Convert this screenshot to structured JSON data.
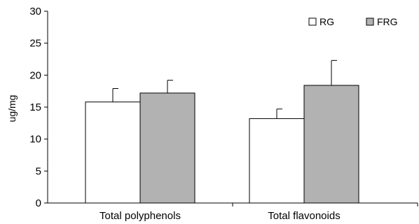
{
  "chart_data": {
    "type": "bar",
    "title": "",
    "xlabel": "",
    "ylabel": "ug/mg",
    "ylim": [
      0,
      30
    ],
    "yticks": [
      0,
      5,
      10,
      15,
      20,
      25,
      30
    ],
    "categories": [
      "Total polyphenols",
      "Total flavonoids"
    ],
    "series": [
      {
        "name": "RG",
        "color": "#ffffff",
        "values": [
          15.8,
          13.2
        ],
        "errors": [
          2.1,
          1.5
        ]
      },
      {
        "name": "FRG",
        "color": "#b2b2b2",
        "values": [
          17.2,
          18.4
        ],
        "errors": [
          2.0,
          3.9
        ]
      }
    ],
    "legend": "top-right",
    "grid": false
  }
}
